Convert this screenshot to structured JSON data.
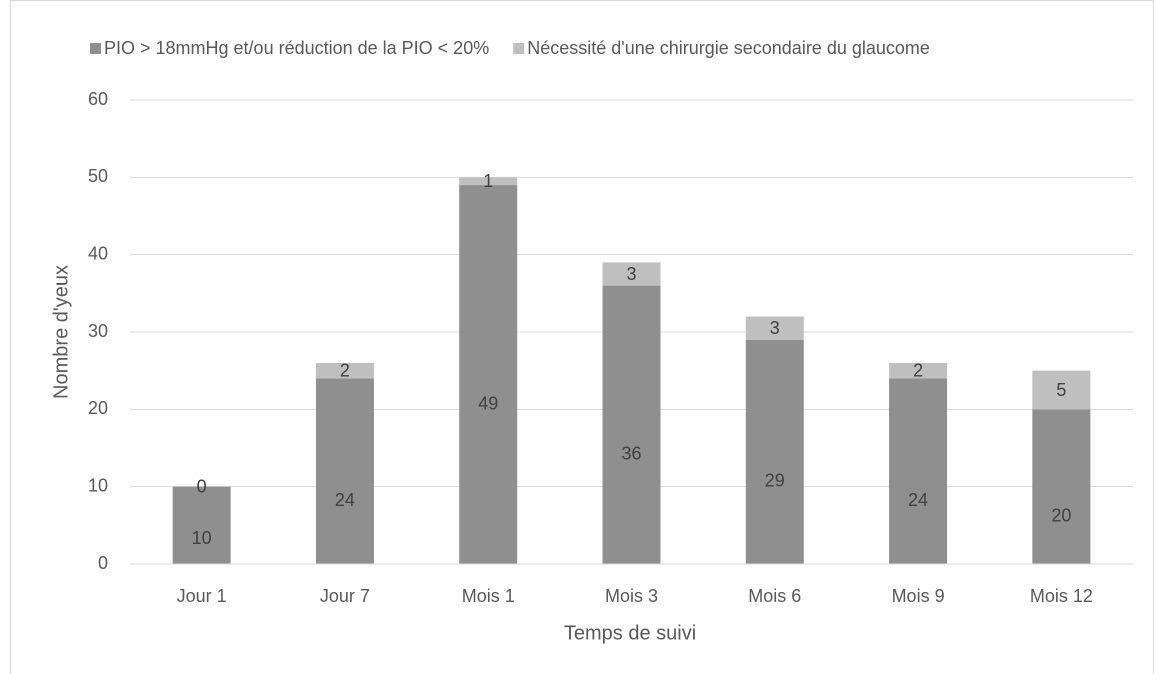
{
  "chart_data": {
    "type": "stacked_bar",
    "x_label": "Temps de suivi",
    "y_label": "Nombre d'yeux",
    "categories": [
      "Jour 1",
      "Jour 7",
      "Mois 1",
      "Mois 3",
      "Mois 6",
      "Mois 9",
      "Mois 12"
    ],
    "series": [
      {
        "name": "PIO > 18mmHg et/ou réduction de la PIO < 20%",
        "color": "#8f8f8f",
        "values": [
          10,
          24,
          49,
          36,
          29,
          24,
          20
        ]
      },
      {
        "name": "Nécessité d'une chirurgie secondaire du glaucome",
        "color": "#bfbfbf",
        "values": [
          0,
          2,
          1,
          3,
          3,
          2,
          5
        ]
      }
    ],
    "ylim": [
      0,
      60
    ],
    "yticks": [
      0,
      10,
      20,
      30,
      40,
      50,
      60
    ],
    "grid": true,
    "legend": "top"
  }
}
